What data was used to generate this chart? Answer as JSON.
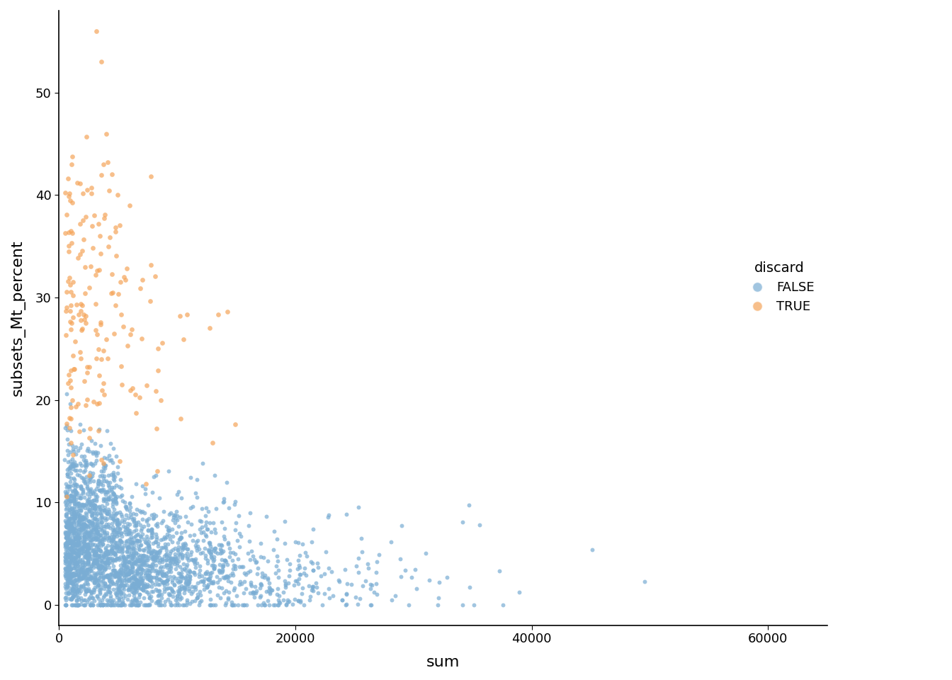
{
  "title": "",
  "xlabel": "sum",
  "ylabel": "subsets_Mt_percent",
  "xlim": [
    0,
    65000
  ],
  "ylim": [
    -2,
    58
  ],
  "yticks": [
    0,
    10,
    20,
    30,
    40,
    50
  ],
  "xticks": [
    0,
    20000,
    40000,
    60000
  ],
  "color_false": "#7aadd4",
  "color_true": "#f5a55a",
  "alpha": 0.7,
  "point_size": 18,
  "legend_title": "discard",
  "legend_labels": [
    "FALSE",
    "TRUE"
  ],
  "background_color": "#ffffff",
  "seed": 42
}
